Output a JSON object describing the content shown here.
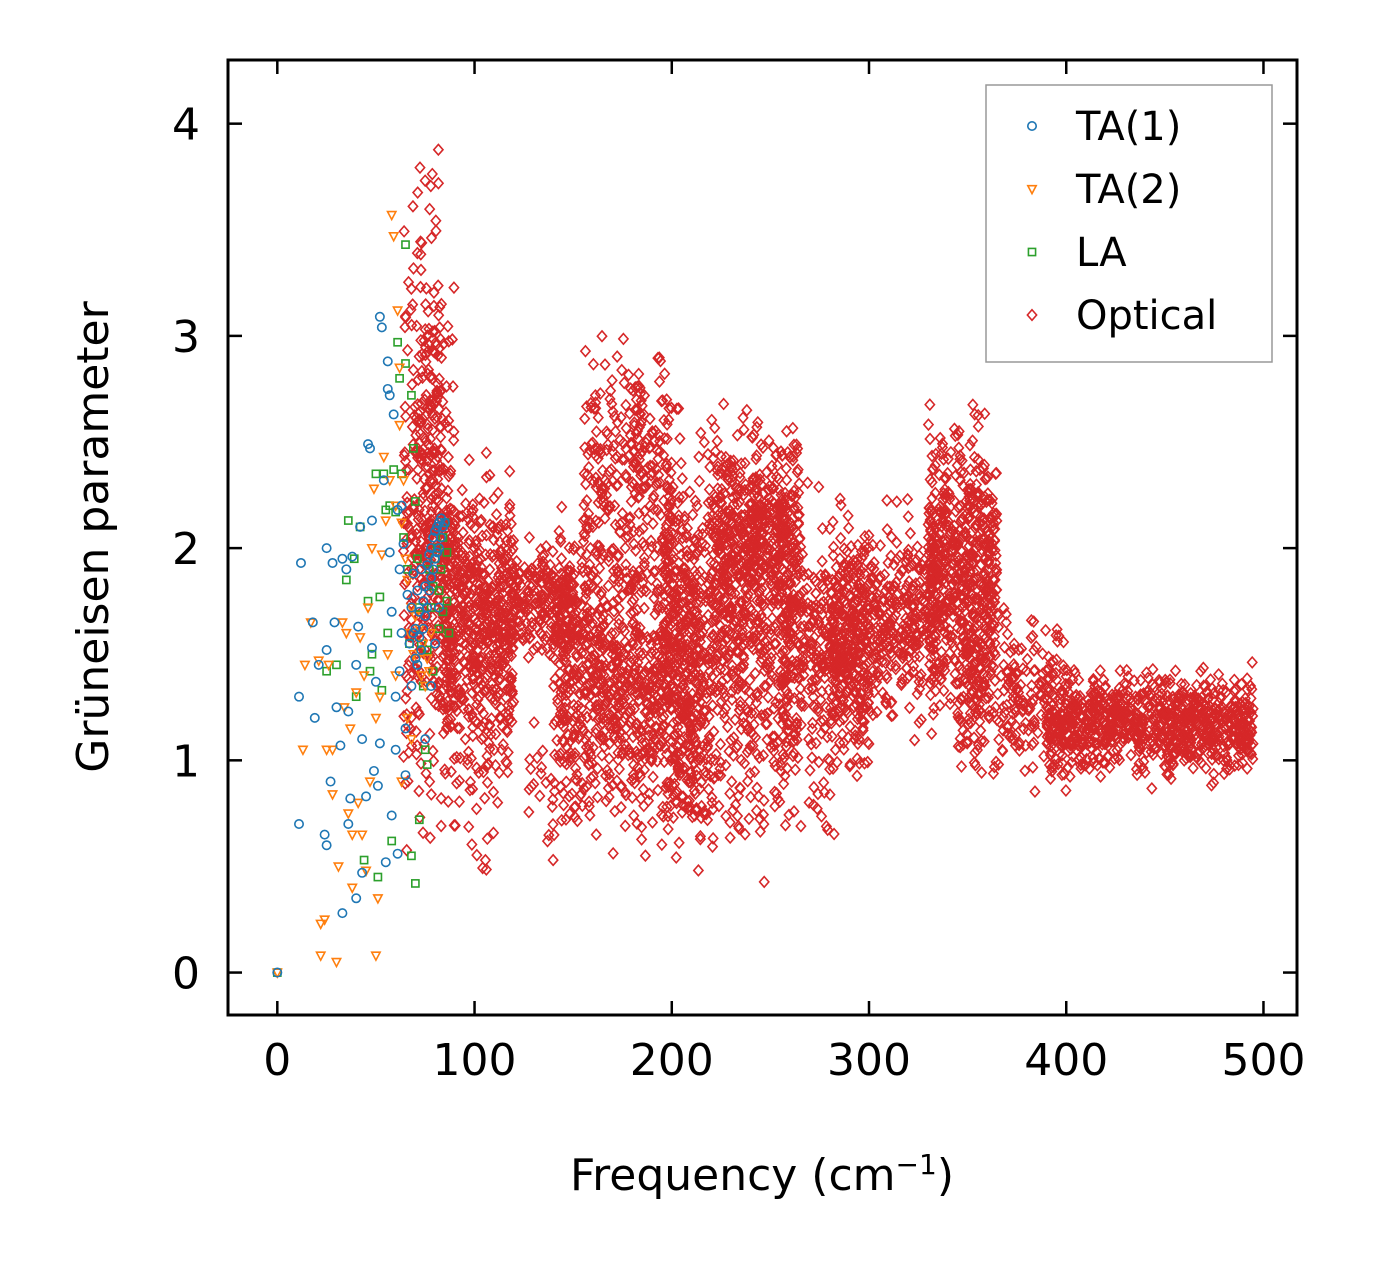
{
  "chart_data": {
    "type": "scatter",
    "title": "",
    "xlabel": "Frequency (cm",
    "xlabel_sup": "−1",
    "xlabel_close": ")",
    "ylabel": "Grüneisen parameter",
    "xlim": [
      -25,
      517
    ],
    "ylim": [
      -0.2,
      4.3
    ],
    "xticks": [
      0,
      100,
      200,
      300,
      400,
      500
    ],
    "yticks": [
      0,
      1,
      2,
      3,
      4
    ],
    "xtick_labels": [
      "0",
      "100",
      "200",
      "300",
      "400",
      "500"
    ],
    "ytick_labels": [
      "0",
      "1",
      "2",
      "3",
      "4"
    ],
    "grid": false,
    "legend_position": "top-right",
    "series": [
      {
        "name": "TA(1)",
        "marker": "circle",
        "color": "#1f77b4",
        "points": [
          [
            0,
            0
          ],
          [
            12,
            1.93
          ],
          [
            11,
            1.3
          ],
          [
            11,
            0.7
          ],
          [
            18,
            1.65
          ],
          [
            19,
            1.2
          ],
          [
            21,
            1.45
          ],
          [
            25,
            2.0
          ],
          [
            25,
            1.52
          ],
          [
            24,
            0.65
          ],
          [
            25,
            0.6
          ],
          [
            27,
            0.9
          ],
          [
            28,
            1.93
          ],
          [
            29,
            1.65
          ],
          [
            30,
            1.25
          ],
          [
            32,
            1.07
          ],
          [
            33,
            1.95
          ],
          [
            33,
            0.28
          ],
          [
            35,
            1.9
          ],
          [
            36,
            1.23
          ],
          [
            36,
            0.7
          ],
          [
            37,
            0.82
          ],
          [
            38,
            1.96
          ],
          [
            40,
            1.45
          ],
          [
            40,
            0.35
          ],
          [
            41,
            1.63
          ],
          [
            42,
            2.1
          ],
          [
            43,
            1.1
          ],
          [
            43,
            0.47
          ],
          [
            45,
            0.83
          ],
          [
            46,
            2.49
          ],
          [
            47,
            2.47
          ],
          [
            48,
            2.13
          ],
          [
            48,
            1.53
          ],
          [
            49,
            0.95
          ],
          [
            50,
            1.37
          ],
          [
            51,
            0.88
          ],
          [
            52,
            1.08
          ],
          [
            52,
            3.09
          ],
          [
            53,
            3.04
          ],
          [
            54,
            2.32
          ],
          [
            55,
            0.52
          ],
          [
            56,
            2.88
          ],
          [
            56,
            2.75
          ],
          [
            57,
            2.72
          ],
          [
            57,
            1.98
          ],
          [
            58,
            1.7
          ],
          [
            58,
            0.74
          ],
          [
            59,
            2.63
          ],
          [
            60,
            1.3
          ],
          [
            60,
            1.05
          ],
          [
            61,
            2.18
          ],
          [
            61,
            0.56
          ],
          [
            62,
            1.9
          ],
          [
            62,
            1.42
          ],
          [
            63,
            2.2
          ],
          [
            63,
            1.6
          ],
          [
            64,
            2.02
          ],
          [
            65,
            1.15
          ],
          [
            65,
            0.93
          ],
          [
            66,
            1.78
          ],
          [
            67,
            1.55
          ],
          [
            68,
            1.72
          ],
          [
            68,
            1.35
          ],
          [
            69,
            1.88
          ],
          [
            69,
            1.6
          ],
          [
            70,
            1.62
          ],
          [
            70,
            1.48
          ],
          [
            71,
            1.8
          ],
          [
            71,
            1.45
          ],
          [
            72,
            1.7
          ],
          [
            72,
            1.58
          ],
          [
            73,
            1.9
          ],
          [
            73,
            1.52
          ],
          [
            74,
            1.75
          ],
          [
            74,
            1.62
          ],
          [
            75,
            1.68
          ],
          [
            75,
            1.82
          ],
          [
            76,
            1.72
          ],
          [
            76,
            1.92
          ],
          [
            77,
            1.8
          ],
          [
            77,
            1.97
          ],
          [
            78,
            1.86
          ],
          [
            78,
            2.0
          ],
          [
            79,
            1.9
          ],
          [
            79,
            2.05
          ],
          [
            80,
            1.95
          ],
          [
            80,
            2.08
          ],
          [
            81,
            1.98
          ],
          [
            81,
            2.1
          ],
          [
            82,
            2.0
          ],
          [
            82,
            2.12
          ],
          [
            83,
            2.05
          ],
          [
            83,
            2.14
          ],
          [
            84,
            2.1
          ],
          [
            85,
            2.12
          ],
          [
            75,
            1.1
          ],
          [
            78,
            1.35
          ],
          [
            80,
            1.55
          ],
          [
            82,
            1.72
          ]
        ]
      },
      {
        "name": "TA(2)",
        "marker": "triangle-down",
        "color": "#ff7f0e",
        "points": [
          [
            0,
            0
          ],
          [
            14,
            1.45
          ],
          [
            13,
            1.05
          ],
          [
            17,
            1.65
          ],
          [
            21,
            1.47
          ],
          [
            22,
            0.08
          ],
          [
            22,
            0.23
          ],
          [
            24,
            0.25
          ],
          [
            25,
            1.05
          ],
          [
            26,
            1.45
          ],
          [
            28,
            1.05
          ],
          [
            28,
            0.84
          ],
          [
            30,
            0.05
          ],
          [
            31,
            0.5
          ],
          [
            33,
            1.65
          ],
          [
            34,
            1.25
          ],
          [
            35,
            1.6
          ],
          [
            36,
            0.75
          ],
          [
            37,
            1.15
          ],
          [
            38,
            0.65
          ],
          [
            38,
            0.4
          ],
          [
            40,
            1.32
          ],
          [
            41,
            0.8
          ],
          [
            42,
            1.58
          ],
          [
            43,
            0.65
          ],
          [
            44,
            1.4
          ],
          [
            45,
            0.48
          ],
          [
            46,
            1.72
          ],
          [
            47,
            0.9
          ],
          [
            48,
            2.0
          ],
          [
            49,
            2.28
          ],
          [
            50,
            1.2
          ],
          [
            50,
            0.08
          ],
          [
            51,
            0.35
          ],
          [
            52,
            1.3
          ],
          [
            53,
            1.97
          ],
          [
            54,
            2.43
          ],
          [
            55,
            2.13
          ],
          [
            56,
            1.5
          ],
          [
            57,
            2.32
          ],
          [
            58,
            3.57
          ],
          [
            59,
            3.47
          ],
          [
            60,
            2.2
          ],
          [
            61,
            3.12
          ],
          [
            62,
            2.85
          ],
          [
            62,
            2.58
          ],
          [
            63,
            2.12
          ],
          [
            64,
            2.32
          ],
          [
            65,
            1.95
          ],
          [
            66,
            1.85
          ],
          [
            67,
            1.6
          ],
          [
            68,
            1.72
          ],
          [
            69,
            1.5
          ],
          [
            70,
            1.68
          ],
          [
            71,
            1.48
          ],
          [
            72,
            1.62
          ],
          [
            73,
            1.4
          ],
          [
            74,
            1.55
          ],
          [
            75,
            1.35
          ],
          [
            76,
            1.48
          ],
          [
            77,
            1.42
          ],
          [
            78,
            1.6
          ],
          [
            60,
            1.4
          ],
          [
            63,
            0.9
          ],
          [
            66,
            1.2
          ],
          [
            68,
            1.1
          ]
        ]
      },
      {
        "name": "LA",
        "marker": "square",
        "color": "#2ca02c",
        "points": [
          [
            0,
            0
          ],
          [
            25,
            1.42
          ],
          [
            30,
            1.45
          ],
          [
            35,
            1.85
          ],
          [
            36,
            2.13
          ],
          [
            39,
            1.95
          ],
          [
            40,
            1.3
          ],
          [
            42,
            2.1
          ],
          [
            44,
            0.53
          ],
          [
            46,
            1.75
          ],
          [
            47,
            1.42
          ],
          [
            48,
            1.5
          ],
          [
            50,
            2.35
          ],
          [
            51,
            0.45
          ],
          [
            52,
            1.77
          ],
          [
            53,
            1.33
          ],
          [
            54,
            2.35
          ],
          [
            55,
            2.18
          ],
          [
            56,
            1.6
          ],
          [
            57,
            2.2
          ],
          [
            58,
            0.62
          ],
          [
            59,
            2.37
          ],
          [
            60,
            2.17
          ],
          [
            61,
            2.97
          ],
          [
            62,
            2.8
          ],
          [
            63,
            2.35
          ],
          [
            64,
            2.05
          ],
          [
            65,
            2.87
          ],
          [
            65,
            3.43
          ],
          [
            66,
            1.9
          ],
          [
            67,
            1.55
          ],
          [
            68,
            2.72
          ],
          [
            68,
            0.55
          ],
          [
            69,
            2.47
          ],
          [
            70,
            2.22
          ],
          [
            70,
            0.42
          ],
          [
            71,
            1.95
          ],
          [
            72,
            1.72
          ],
          [
            72,
            0.72
          ],
          [
            73,
            1.55
          ],
          [
            74,
            1.35
          ],
          [
            75,
            1.05
          ],
          [
            76,
            0.98
          ],
          [
            77,
            1.9
          ],
          [
            78,
            1.72
          ],
          [
            79,
            1.82
          ],
          [
            80,
            1.95
          ],
          [
            81,
            2.0
          ],
          [
            82,
            1.8
          ],
          [
            83,
            1.9
          ],
          [
            84,
            2.05
          ],
          [
            85,
            2.12
          ],
          [
            86,
            1.98
          ],
          [
            86,
            1.75
          ],
          [
            87,
            1.6
          ],
          [
            76,
            1.52
          ],
          [
            79,
            1.42
          ],
          [
            82,
            1.62
          ],
          [
            84,
            1.7
          ]
        ]
      },
      {
        "name": "Optical",
        "marker": "diamond",
        "color": "#d62728",
        "regions": [
          {
            "x": [
              64,
              84
            ],
            "y": [
              0.32,
              4.12
            ],
            "n": 260
          },
          {
            "x": [
              68,
              90
            ],
            "y": [
              0.5,
              3.6
            ],
            "n": 220
          },
          {
            "x": [
              84,
              120
            ],
            "y": [
              0.9,
              2.52
            ],
            "n": 480
          },
          {
            "x": [
              84,
              120
            ],
            "y": [
              0.22,
              2.25
            ],
            "n": 160
          },
          {
            "x": [
              118,
              150
            ],
            "y": [
              1.4,
              2.1
            ],
            "n": 220
          },
          {
            "x": [
              125,
              140
            ],
            "y": [
              0.27,
              1.4
            ],
            "n": 20
          },
          {
            "x": [
              140,
              215
            ],
            "y": [
              0.38,
              2.4
            ],
            "n": 1000
          },
          {
            "x": [
              155,
              200
            ],
            "y": [
              1.6,
              3.15
            ],
            "n": 260
          },
          {
            "x": [
              195,
              260
            ],
            "y": [
              0.3,
              2.9
            ],
            "n": 800
          },
          {
            "x": [
              220,
              265
            ],
            "y": [
              1.4,
              2.72
            ],
            "n": 420
          },
          {
            "x": [
              255,
              300
            ],
            "y": [
              0.55,
              2.4
            ],
            "n": 450
          },
          {
            "x": [
              280,
              335
            ],
            "y": [
              1.0,
              2.3
            ],
            "n": 500
          },
          {
            "x": [
              330,
              365
            ],
            "y": [
              1.0,
              2.8
            ],
            "n": 600
          },
          {
            "x": [
              345,
              400
            ],
            "y": [
              0.7,
              1.9
            ],
            "n": 250
          },
          {
            "x": [
              390,
              495
            ],
            "y": [
              0.85,
              1.5
            ],
            "n": 900
          }
        ]
      }
    ]
  }
}
